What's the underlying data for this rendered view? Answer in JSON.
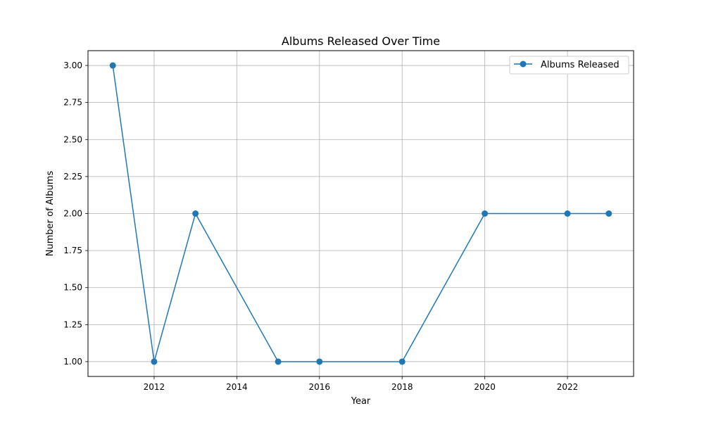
{
  "chart_data": {
    "type": "line",
    "title": "Albums Released Over Time",
    "xlabel": "Year",
    "ylabel": "Number of Albums",
    "xlim": [
      2010.4,
      2023.6
    ],
    "ylim": [
      0.9,
      3.1
    ],
    "x_ticks": [
      2012,
      2014,
      2016,
      2018,
      2020,
      2022
    ],
    "x_tick_labels": [
      "2012",
      "2014",
      "2016",
      "2018",
      "2020",
      "2022"
    ],
    "y_ticks": [
      1.0,
      1.25,
      1.5,
      1.75,
      2.0,
      2.25,
      2.5,
      2.75,
      3.0
    ],
    "y_tick_labels": [
      "1.00",
      "1.25",
      "1.50",
      "1.75",
      "2.00",
      "2.25",
      "2.50",
      "2.75",
      "3.00"
    ],
    "grid": true,
    "legend_position": "top-right",
    "series": [
      {
        "name": "Albums Released",
        "color": "#1f77b4",
        "marker": "circle",
        "x": [
          2011,
          2012,
          2013,
          2015,
          2016,
          2018,
          2020,
          2022,
          2023
        ],
        "y": [
          3,
          1,
          2,
          1,
          1,
          1,
          2,
          2,
          2
        ]
      }
    ]
  }
}
